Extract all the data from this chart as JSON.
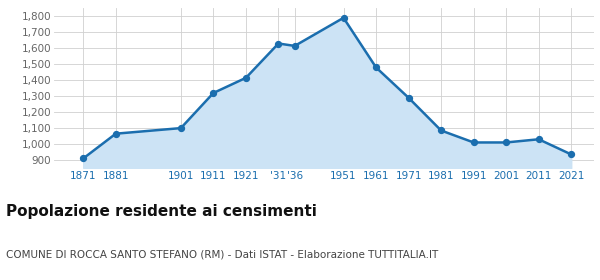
{
  "years": [
    1871,
    1881,
    1901,
    1911,
    1921,
    1931,
    1936,
    1951,
    1961,
    1971,
    1981,
    1991,
    2001,
    2011,
    2021
  ],
  "population": [
    910,
    1065,
    1100,
    1320,
    1415,
    1630,
    1615,
    1791,
    1480,
    1290,
    1085,
    1010,
    1010,
    1030,
    935
  ],
  "line_color": "#1b6eae",
  "fill_color": "#cce3f5",
  "marker_color": "#1b6eae",
  "background_color": "#ffffff",
  "grid_color": "#d0d0d0",
  "ylim": [
    850,
    1850
  ],
  "yticks": [
    900,
    1000,
    1100,
    1200,
    1300,
    1400,
    1500,
    1600,
    1700,
    1800
  ],
  "xlim_left": 1862,
  "xlim_right": 2028,
  "xtick_positions": [
    1871,
    1881,
    1901,
    1911,
    1921,
    1931,
    1936,
    1951,
    1961,
    1971,
    1981,
    1991,
    2001,
    2011,
    2021
  ],
  "xtick_labels": [
    "1871",
    "1881",
    "1901",
    "1911",
    "1921",
    "'31",
    "'36",
    "1951",
    "1961",
    "1971",
    "1981",
    "1991",
    "2001",
    "2011",
    "2021"
  ],
  "title": "Popolazione residente ai censimenti",
  "subtitle": "COMUNE DI ROCCA SANTO STEFANO (RM) - Dati ISTAT - Elaborazione TUTTITALIA.IT",
  "title_fontsize": 11,
  "subtitle_fontsize": 7.5,
  "axis_label_color": "#1b6eae",
  "ytick_color": "#666666",
  "tick_fontsize": 7.5,
  "linewidth": 1.8,
  "marker_size": 18
}
